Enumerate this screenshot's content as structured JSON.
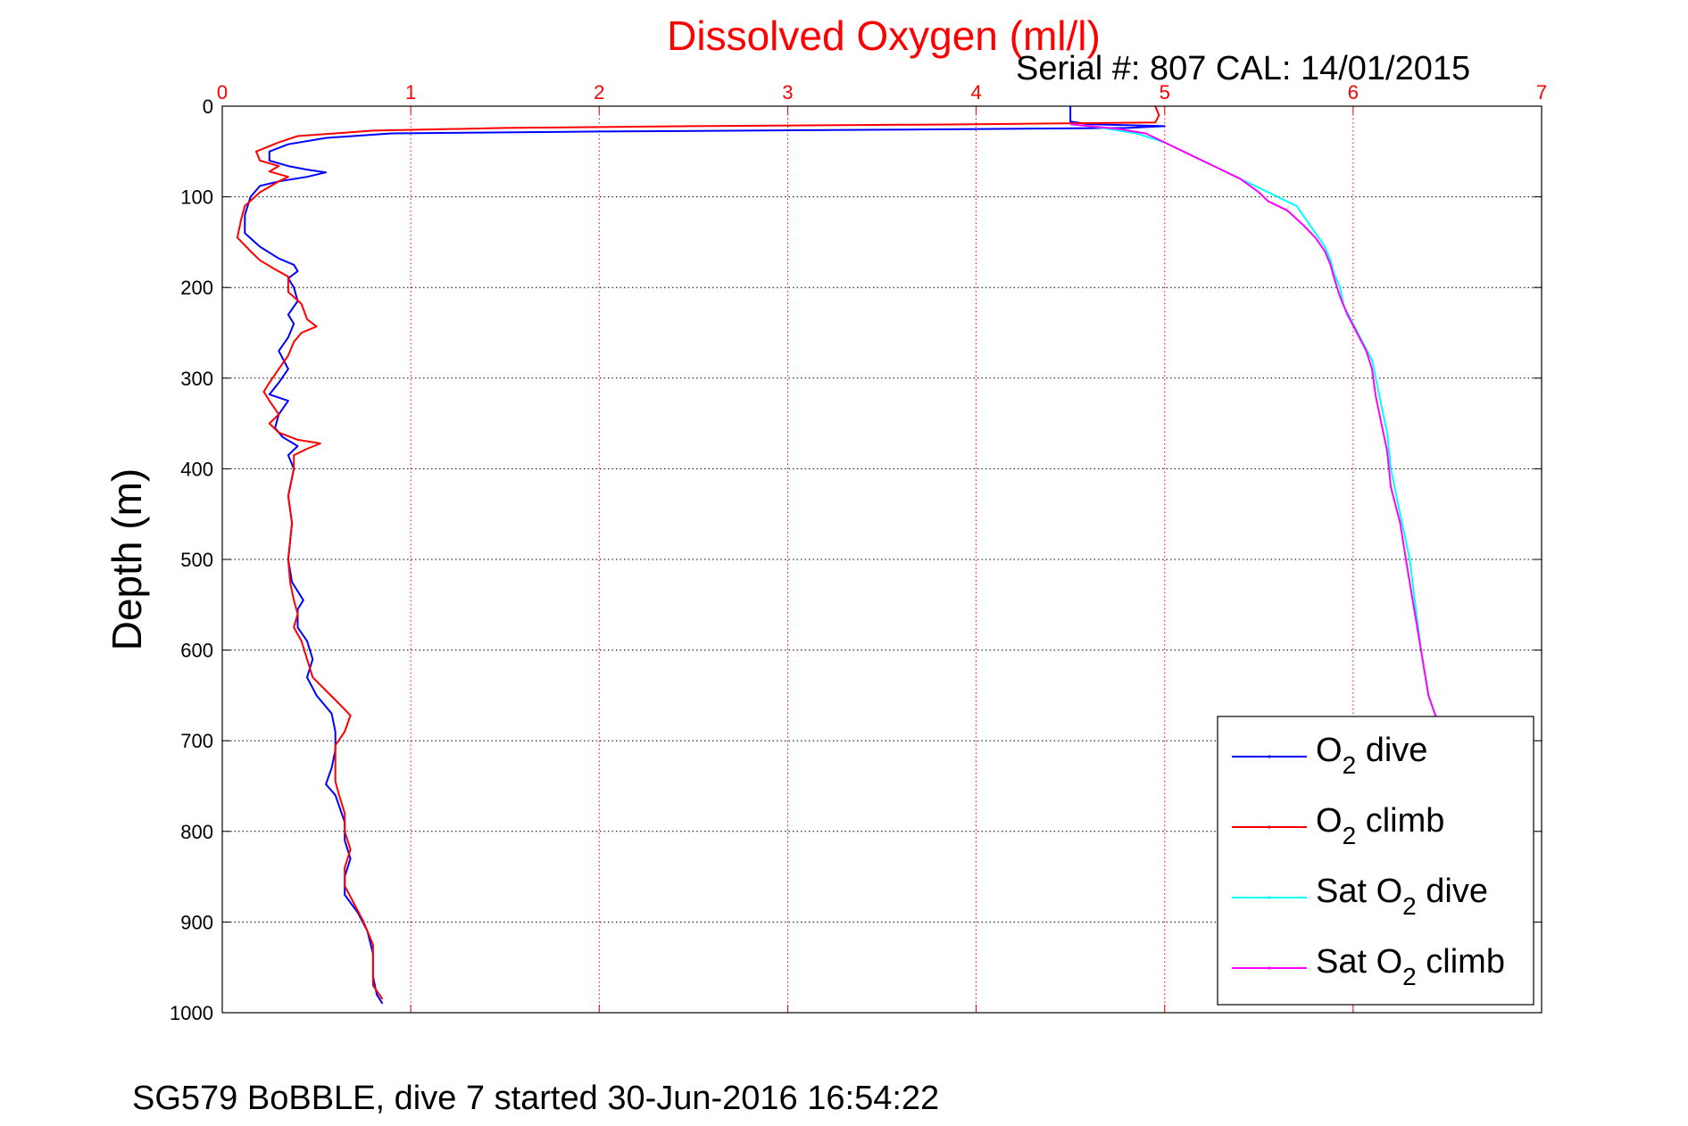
{
  "chart_data": {
    "type": "line",
    "title": "Dissolved Oxygen (ml/l)",
    "subtitle": "Serial #: 807  CAL: 14/01/2015",
    "xlabel": "",
    "ylabel": "Depth (m)",
    "caption": "SG579 BoBBLE, dive 7 started 30-Jun-2016 16:54:22",
    "xlim": [
      0,
      7
    ],
    "ylim": [
      0,
      1000
    ],
    "y_reversed": true,
    "x_axis_position": "top",
    "xticks": [
      "0",
      "1",
      "2",
      "3",
      "4",
      "5",
      "6",
      "7"
    ],
    "yticks": [
      "0",
      "100",
      "200",
      "300",
      "400",
      "500",
      "600",
      "700",
      "800",
      "900",
      "1000"
    ],
    "grid": true,
    "legend_position": "bottom-right",
    "colors": {
      "o2_dive": "#0000ff",
      "o2_climb": "#ff0000",
      "sat_dive": "#00ffff",
      "sat_climb": "#ff00ff",
      "title": "#ff0000",
      "xticks": "#ff0000"
    },
    "series": [
      {
        "name": "O2 dive",
        "label_parts": [
          "O",
          "2",
          " dive"
        ],
        "color": "#0000ff",
        "points": [
          [
            4.5,
            0
          ],
          [
            4.5,
            10
          ],
          [
            4.5,
            17
          ],
          [
            4.6,
            20
          ],
          [
            5.0,
            22
          ],
          [
            4.8,
            24
          ],
          [
            3.5,
            26
          ],
          [
            2.0,
            28
          ],
          [
            0.9,
            30
          ],
          [
            0.55,
            35
          ],
          [
            0.35,
            42
          ],
          [
            0.25,
            50
          ],
          [
            0.25,
            60
          ],
          [
            0.35,
            66
          ],
          [
            0.45,
            70
          ],
          [
            0.55,
            73
          ],
          [
            0.45,
            78
          ],
          [
            0.3,
            83
          ],
          [
            0.2,
            88
          ],
          [
            0.15,
            100
          ],
          [
            0.12,
            120
          ],
          [
            0.12,
            140
          ],
          [
            0.2,
            155
          ],
          [
            0.3,
            168
          ],
          [
            0.38,
            175
          ],
          [
            0.4,
            182
          ],
          [
            0.35,
            190
          ],
          [
            0.38,
            200
          ],
          [
            0.4,
            215
          ],
          [
            0.35,
            230
          ],
          [
            0.38,
            240
          ],
          [
            0.35,
            255
          ],
          [
            0.3,
            270
          ],
          [
            0.35,
            290
          ],
          [
            0.3,
            305
          ],
          [
            0.25,
            318
          ],
          [
            0.35,
            325
          ],
          [
            0.3,
            340
          ],
          [
            0.28,
            355
          ],
          [
            0.32,
            365
          ],
          [
            0.4,
            375
          ],
          [
            0.35,
            385
          ],
          [
            0.38,
            400
          ],
          [
            0.35,
            430
          ],
          [
            0.37,
            460
          ],
          [
            0.35,
            500
          ],
          [
            0.37,
            525
          ],
          [
            0.43,
            545
          ],
          [
            0.4,
            555
          ],
          [
            0.4,
            575
          ],
          [
            0.45,
            590
          ],
          [
            0.48,
            610
          ],
          [
            0.45,
            630
          ],
          [
            0.5,
            650
          ],
          [
            0.58,
            670
          ],
          [
            0.6,
            690
          ],
          [
            0.6,
            710
          ],
          [
            0.58,
            730
          ],
          [
            0.55,
            748
          ],
          [
            0.6,
            760
          ],
          [
            0.65,
            790
          ],
          [
            0.65,
            810
          ],
          [
            0.68,
            830
          ],
          [
            0.65,
            850
          ],
          [
            0.65,
            870
          ],
          [
            0.72,
            890
          ],
          [
            0.77,
            910
          ],
          [
            0.8,
            935
          ],
          [
            0.8,
            960
          ],
          [
            0.82,
            980
          ],
          [
            0.85,
            990
          ]
        ]
      },
      {
        "name": "O2 climb",
        "label_parts": [
          "O",
          "2",
          " climb"
        ],
        "color": "#ff0000",
        "points": [
          [
            4.95,
            0
          ],
          [
            4.97,
            10
          ],
          [
            4.95,
            18
          ],
          [
            4.0,
            20
          ],
          [
            2.5,
            22
          ],
          [
            1.5,
            24
          ],
          [
            0.8,
            27
          ],
          [
            0.4,
            33
          ],
          [
            0.3,
            40
          ],
          [
            0.18,
            50
          ],
          [
            0.2,
            60
          ],
          [
            0.3,
            66
          ],
          [
            0.25,
            72
          ],
          [
            0.35,
            78
          ],
          [
            0.3,
            83
          ],
          [
            0.2,
            95
          ],
          [
            0.12,
            110
          ],
          [
            0.1,
            125
          ],
          [
            0.08,
            145
          ],
          [
            0.15,
            160
          ],
          [
            0.2,
            170
          ],
          [
            0.28,
            180
          ],
          [
            0.35,
            188
          ],
          [
            0.35,
            205
          ],
          [
            0.42,
            218
          ],
          [
            0.45,
            235
          ],
          [
            0.5,
            243
          ],
          [
            0.42,
            250
          ],
          [
            0.38,
            260
          ],
          [
            0.35,
            275
          ],
          [
            0.3,
            290
          ],
          [
            0.25,
            305
          ],
          [
            0.22,
            315
          ],
          [
            0.25,
            325
          ],
          [
            0.3,
            340
          ],
          [
            0.25,
            350
          ],
          [
            0.3,
            360
          ],
          [
            0.4,
            368
          ],
          [
            0.52,
            372
          ],
          [
            0.45,
            378
          ],
          [
            0.38,
            385
          ],
          [
            0.38,
            400
          ],
          [
            0.35,
            430
          ],
          [
            0.37,
            460
          ],
          [
            0.35,
            500
          ],
          [
            0.36,
            525
          ],
          [
            0.38,
            545
          ],
          [
            0.4,
            560
          ],
          [
            0.38,
            575
          ],
          [
            0.42,
            590
          ],
          [
            0.45,
            610
          ],
          [
            0.48,
            630
          ],
          [
            0.6,
            655
          ],
          [
            0.68,
            672
          ],
          [
            0.65,
            690
          ],
          [
            0.6,
            705
          ],
          [
            0.6,
            725
          ],
          [
            0.6,
            745
          ],
          [
            0.62,
            760
          ],
          [
            0.65,
            780
          ],
          [
            0.65,
            800
          ],
          [
            0.68,
            820
          ],
          [
            0.65,
            840
          ],
          [
            0.65,
            860
          ],
          [
            0.7,
            880
          ],
          [
            0.75,
            900
          ],
          [
            0.8,
            925
          ],
          [
            0.8,
            950
          ],
          [
            0.8,
            970
          ],
          [
            0.85,
            985
          ]
        ]
      },
      {
        "name": "Sat O2 dive",
        "label_parts": [
          "Sat O",
          "2",
          " dive"
        ],
        "color": "#00ffff",
        "points": [
          [
            4.5,
            20
          ],
          [
            4.6,
            22
          ],
          [
            4.7,
            25
          ],
          [
            4.85,
            30
          ],
          [
            5.0,
            40
          ],
          [
            5.1,
            50
          ],
          [
            5.2,
            60
          ],
          [
            5.3,
            70
          ],
          [
            5.4,
            80
          ],
          [
            5.5,
            90
          ],
          [
            5.6,
            100
          ],
          [
            5.7,
            110
          ],
          [
            5.75,
            125
          ],
          [
            5.8,
            140
          ],
          [
            5.85,
            155
          ],
          [
            5.88,
            170
          ],
          [
            5.9,
            185
          ],
          [
            5.93,
            200
          ],
          [
            5.95,
            220
          ],
          [
            6.0,
            240
          ],
          [
            6.05,
            260
          ],
          [
            6.1,
            280
          ],
          [
            6.12,
            300
          ],
          [
            6.15,
            330
          ],
          [
            6.18,
            360
          ],
          [
            6.2,
            400
          ],
          [
            6.25,
            450
          ],
          [
            6.3,
            500
          ],
          [
            6.33,
            550
          ],
          [
            6.36,
            600
          ],
          [
            6.4,
            650
          ],
          [
            6.45,
            680
          ]
        ]
      },
      {
        "name": "Sat O2 climb",
        "label_parts": [
          "Sat O",
          "2",
          " climb"
        ],
        "color": "#ff00ff",
        "points": [
          [
            4.5,
            20
          ],
          [
            4.6,
            22
          ],
          [
            4.75,
            25
          ],
          [
            4.9,
            30
          ],
          [
            5.0,
            40
          ],
          [
            5.1,
            50
          ],
          [
            5.2,
            60
          ],
          [
            5.3,
            70
          ],
          [
            5.4,
            80
          ],
          [
            5.5,
            95
          ],
          [
            5.55,
            105
          ],
          [
            5.65,
            115
          ],
          [
            5.73,
            130
          ],
          [
            5.8,
            145
          ],
          [
            5.85,
            160
          ],
          [
            5.88,
            175
          ],
          [
            5.9,
            190
          ],
          [
            5.93,
            210
          ],
          [
            5.97,
            230
          ],
          [
            6.02,
            250
          ],
          [
            6.07,
            270
          ],
          [
            6.1,
            290
          ],
          [
            6.12,
            320
          ],
          [
            6.15,
            350
          ],
          [
            6.18,
            380
          ],
          [
            6.2,
            420
          ],
          [
            6.25,
            460
          ],
          [
            6.28,
            500
          ],
          [
            6.32,
            550
          ],
          [
            6.36,
            600
          ],
          [
            6.4,
            650
          ],
          [
            6.45,
            680
          ],
          [
            6.5,
            720
          ],
          [
            6.55,
            770
          ],
          [
            6.6,
            820
          ],
          [
            6.65,
            870
          ],
          [
            6.7,
            920
          ],
          [
            6.75,
            960
          ],
          [
            6.78,
            990
          ]
        ]
      }
    ]
  }
}
